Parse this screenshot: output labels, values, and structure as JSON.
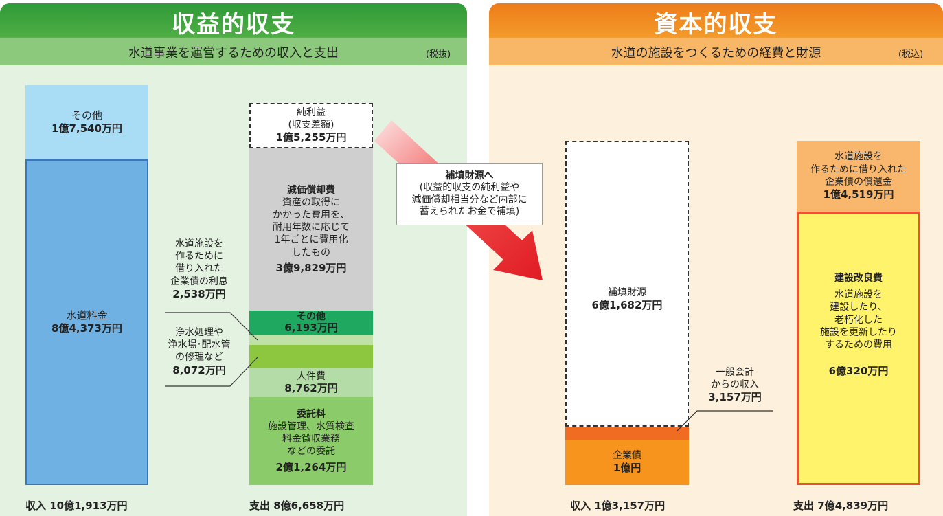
{
  "left": {
    "title": "収益的収支",
    "subtitle": "水道事業を運営するための収入と支出",
    "tax_note": "(税抜)",
    "income": {
      "other": {
        "label": "その他",
        "amount": "1億7,540万円"
      },
      "water_fee": {
        "label": "水道料金",
        "amount": "8億4,373万円"
      },
      "total": "収入 10億1,913万円"
    },
    "expense": {
      "net_profit": {
        "label": "純利益\n(収支差額)",
        "amount": "1億5,255万円"
      },
      "depreciation": {
        "label": "減価償却費",
        "description": "資産の取得に\nかかった費用を、\n耐用年数に応じて\n1年ごとに費用化\nしたもの",
        "amount": "3億9,829万円"
      },
      "other": {
        "label": "その他",
        "amount": "6,193万円"
      },
      "interest": {
        "label": "水道施設を\n作るために\n借り入れた\n企業債の利息",
        "amount": "2,538万円"
      },
      "repair": {
        "label": "浄水処理や\n浄水場･配水管\nの修理など",
        "amount": "8,072万円"
      },
      "personnel": {
        "label": "人件費",
        "amount": "8,762万円"
      },
      "outsourcing": {
        "label": "委託料",
        "description": "施設管理、水質検査\n料金徴収業務\nなどの委託",
        "amount": "2億1,264万円"
      },
      "total": "支出 8億6,658万円"
    }
  },
  "transfer": {
    "title": "補填財源へ",
    "description": "(収益的収支の純利益や\n減価償却相当分など内部に\n蓄えられたお金で補填)"
  },
  "right": {
    "title": "資本的収支",
    "subtitle": "水道の施設をつくるための経費と財源",
    "tax_note": "(税込)",
    "income": {
      "supplement": {
        "label": "補填財源",
        "amount": "6億1,682万円"
      },
      "general_account": {
        "label": "一般会計\nからの収入",
        "amount": "3,157万円"
      },
      "bonds": {
        "label": "企業債",
        "amount": "1億円"
      },
      "total": "収入 1億3,157万円"
    },
    "expense": {
      "redemption": {
        "label": "水道施設を\n作るために借り入れた\n企業債の償還金",
        "amount": "1億4,519万円"
      },
      "construction": {
        "label": "建設改良費",
        "description": "水道施設を\n建設したり、\n老朽化した\n施設を更新したり\nするための費用",
        "amount": "6億320万円"
      },
      "total": "支出 7億4,839万円"
    }
  }
}
